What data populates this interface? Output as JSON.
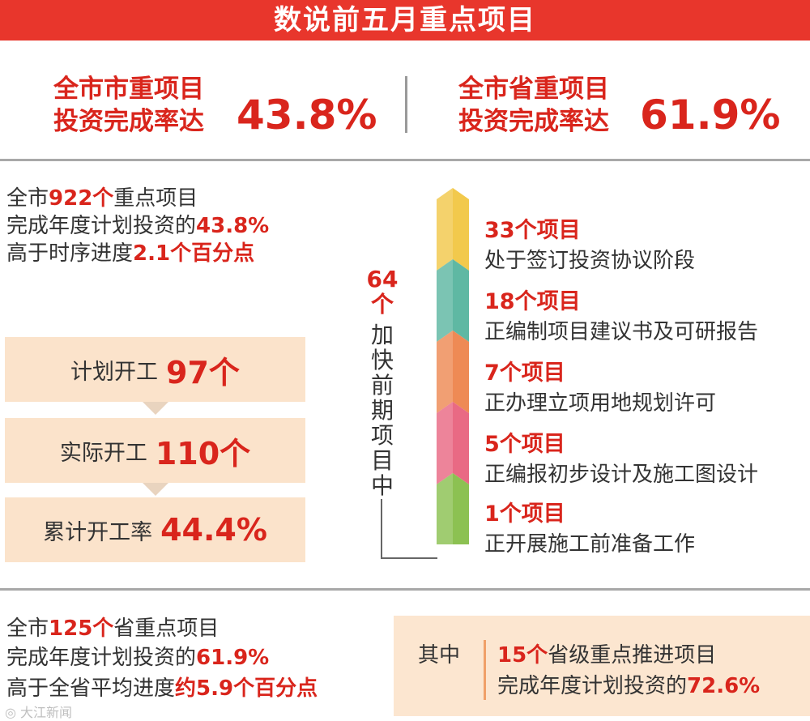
{
  "header": {
    "title": "数说前五月重点项目"
  },
  "rates": {
    "city": {
      "line1": "全市市重项目",
      "line2": "投资完成率达",
      "value": "43.8%"
    },
    "province": {
      "line1": "全市省重项目",
      "line2": "投资完成率达",
      "value": "61.9%"
    }
  },
  "city_projects": {
    "l1_pre": "全市",
    "l1_hl": "922个",
    "l1_post": "重点项目",
    "l2_pre": "完成年度计划投资的",
    "l2_hl": "43.8%",
    "l3_pre": "高于时序进度",
    "l3_hl": "2.1个百分点"
  },
  "construction": [
    {
      "label": "计划开工",
      "value": "97个"
    },
    {
      "label": "实际开工",
      "value": "110个"
    },
    {
      "label": "累计开工率",
      "value": "44.4%"
    }
  ],
  "preliminary": {
    "count_num": "64",
    "count_unit": "个",
    "label_chars": [
      "加",
      "快",
      "前",
      "期",
      "项",
      "目",
      "中"
    ],
    "stages": [
      {
        "title": "33个项目",
        "desc": "处于签订投资协议阶段",
        "color": "#f2c94c"
      },
      {
        "title": "18个项目",
        "desc": "正编制项目建议书及可研报告",
        "color": "#5fb8a3"
      },
      {
        "title": "7个项目",
        "desc": "正办理立项用地规划许可",
        "color": "#ee8a55"
      },
      {
        "title": "5个项目",
        "desc": "正编报初步设计及施工图设计",
        "color": "#e96a84"
      },
      {
        "title": "1个项目",
        "desc": "正开展施工前准备工作",
        "color": "#8cc152"
      }
    ]
  },
  "provincial_projects": {
    "l1_pre": "全市",
    "l1_hl": "125个",
    "l1_post": "省重点项目",
    "l2_pre": "完成年度计划投资的",
    "l2_hl": "61.9%",
    "l3_pre": "高于全省平均进度",
    "l3_hl": "约5.9个百分点"
  },
  "sub_projects": {
    "label": "其中",
    "l1_hl": "15个",
    "l1_post": "省级重点推进项目",
    "l2_pre": "完成年度计划投资的",
    "l2_hl": "72.6%"
  },
  "watermark": "大江新闻"
}
